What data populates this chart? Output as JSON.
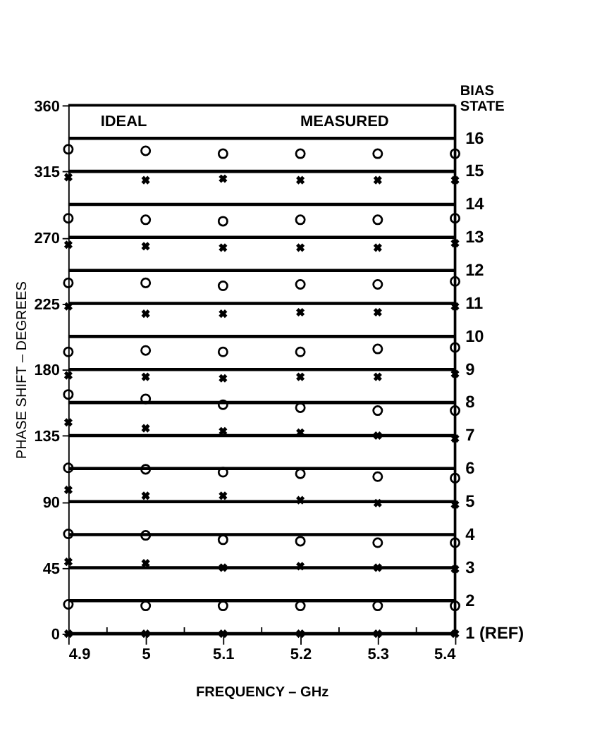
{
  "chart_data": {
    "type": "scatter",
    "xlabel": "FREQUENCY – GHz",
    "ylabel": "PHASE SHIFT – DEGREES",
    "y2label": "BIAS STATE",
    "xlim": [
      4.9,
      5.4
    ],
    "xticks": [
      4.9,
      {
        "value": 4.95,
        "label": null
      },
      5.0,
      {
        "value": 5.05,
        "label": null
      },
      5.1,
      {
        "value": 5.15,
        "label": null
      },
      5.2,
      {
        "value": 5.25,
        "label": null
      },
      5.3,
      {
        "value": 5.35,
        "label": null
      },
      5.4
    ],
    "ylim": [
      0,
      360
    ],
    "yticks": [
      0,
      45,
      90,
      135,
      180,
      225,
      270,
      315,
      360
    ],
    "grid": false,
    "annotations": [
      "IDEAL",
      "MEASURED"
    ],
    "series": [
      {
        "type": "line",
        "name": "1 (REF)",
        "color": "#000000",
        "x": [
          4.9,
          5.4
        ],
        "values": [
          0,
          0
        ]
      },
      {
        "type": "line",
        "name": "2",
        "color": "#000000",
        "x": [
          4.9,
          5.4
        ],
        "values": [
          22.5,
          22.5
        ]
      },
      {
        "type": "line",
        "name": "3",
        "color": "#000000",
        "x": [
          4.9,
          5.4
        ],
        "values": [
          45,
          45
        ]
      },
      {
        "type": "line",
        "name": "4",
        "color": "#000000",
        "x": [
          4.9,
          5.4
        ],
        "values": [
          67.5,
          67.5
        ]
      },
      {
        "type": "line",
        "name": "5",
        "color": "#000000",
        "x": [
          4.9,
          5.4
        ],
        "values": [
          90,
          90
        ]
      },
      {
        "type": "line",
        "name": "6",
        "color": "#000000",
        "x": [
          4.9,
          5.4
        ],
        "values": [
          112.5,
          112.5
        ]
      },
      {
        "type": "line",
        "name": "7",
        "color": "#000000",
        "x": [
          4.9,
          5.4
        ],
        "values": [
          135,
          135
        ]
      },
      {
        "type": "line",
        "name": "8",
        "color": "#000000",
        "x": [
          4.9,
          5.4
        ],
        "values": [
          157.5,
          157.5
        ]
      },
      {
        "type": "line",
        "name": "9",
        "color": "#000000",
        "x": [
          4.9,
          5.4
        ],
        "values": [
          180,
          180
        ]
      },
      {
        "type": "line",
        "name": "10",
        "color": "#000000",
        "x": [
          4.9,
          5.4
        ],
        "values": [
          202.5,
          202.5
        ]
      },
      {
        "type": "line",
        "name": "11",
        "color": "#000000",
        "x": [
          4.9,
          5.4
        ],
        "values": [
          225,
          225
        ]
      },
      {
        "type": "line",
        "name": "12",
        "color": "#000000",
        "x": [
          4.9,
          5.4
        ],
        "values": [
          247.5,
          247.5
        ]
      },
      {
        "type": "line",
        "name": "13",
        "color": "#000000",
        "x": [
          4.9,
          5.4
        ],
        "values": [
          270,
          270
        ]
      },
      {
        "type": "line",
        "name": "14",
        "color": "#000000",
        "x": [
          4.9,
          5.4
        ],
        "values": [
          292.5,
          292.5
        ]
      },
      {
        "type": "line",
        "name": "15",
        "color": "#000000",
        "x": [
          4.9,
          5.4
        ],
        "values": [
          315,
          315
        ]
      },
      {
        "type": "line",
        "name": "16",
        "color": "#000000",
        "x": [
          4.9,
          5.4
        ],
        "values": [
          337.5,
          337.5
        ]
      },
      {
        "color": "#000000",
        "marker": "cross",
        "x": [
          4.9,
          5.0,
          5.1,
          5.2,
          5.3,
          5.4,
          4.9,
          5.0,
          5.1,
          5.2,
          5.3,
          5.4,
          4.9,
          5.0,
          5.1,
          5.2,
          5.3,
          5.4,
          4.9,
          5.0,
          5.1,
          5.2,
          5.3,
          5.4,
          4.9,
          5.0,
          5.1,
          5.2,
          5.3,
          5.4,
          4.9,
          5.0,
          5.1,
          5.2,
          5.3,
          5.4,
          4.9,
          5.0,
          5.1,
          5.2,
          5.3,
          5.4,
          4.9,
          5.0,
          5.1,
          5.2,
          5.3,
          5.4
        ],
        "values": [
          0,
          0,
          0,
          0,
          0,
          0,
          49,
          48,
          45,
          46,
          45,
          44,
          98,
          94,
          94,
          91,
          89,
          88,
          144,
          140,
          138,
          137,
          135,
          133,
          176,
          175,
          174,
          175,
          175,
          177,
          223,
          218,
          218,
          219,
          219,
          223,
          265,
          264,
          263,
          263,
          263,
          266,
          311,
          309,
          310,
          309,
          309,
          309
        ]
      },
      {
        "color": "#000000",
        "marker": "circle",
        "x": [
          4.9,
          5.0,
          5.1,
          5.2,
          5.3,
          5.4,
          4.9,
          5.0,
          5.1,
          5.2,
          5.3,
          5.4,
          4.9,
          5.0,
          5.1,
          5.2,
          5.3,
          5.4,
          4.9,
          5.0,
          5.1,
          5.2,
          5.3,
          5.4,
          4.9,
          5.0,
          5.1,
          5.2,
          5.3,
          5.4,
          4.9,
          5.0,
          5.1,
          5.2,
          5.3,
          5.4,
          4.9,
          5.0,
          5.1,
          5.2,
          5.3,
          5.4,
          4.9,
          5.0,
          5.1,
          5.2,
          5.3,
          5.4
        ],
        "values": [
          20,
          19,
          19,
          19,
          19,
          19,
          68,
          67,
          64,
          63,
          62,
          62,
          113,
          112,
          110,
          109,
          107,
          106,
          163,
          160,
          156,
          154,
          152,
          152,
          192,
          193,
          192,
          192,
          194,
          195,
          239,
          239,
          237,
          238,
          238,
          240,
          283,
          282,
          281,
          282,
          282,
          283,
          330,
          329,
          327,
          327,
          327,
          327
        ]
      }
    ]
  }
}
